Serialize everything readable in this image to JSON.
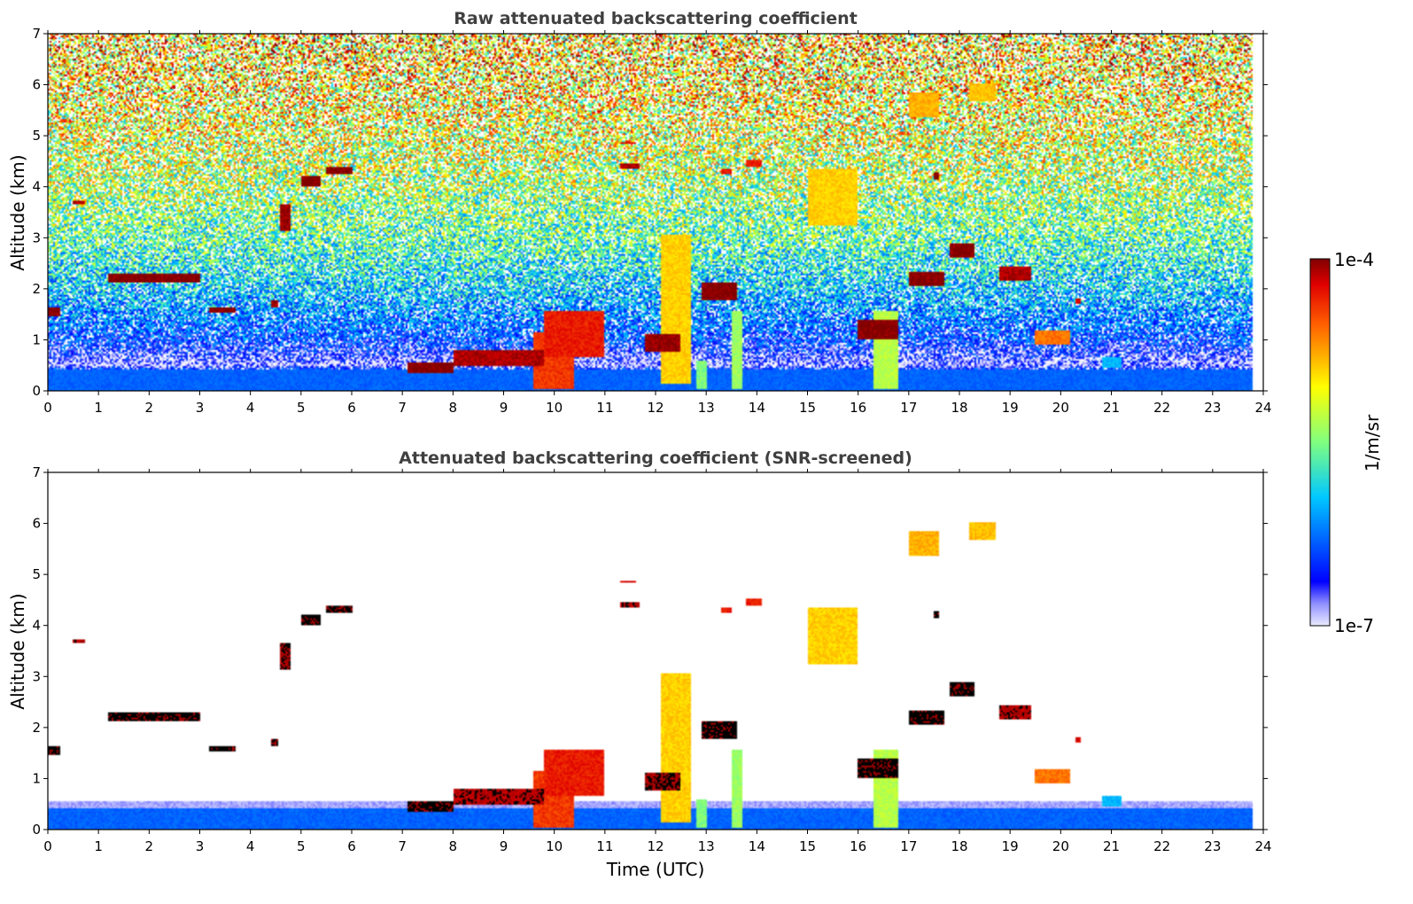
{
  "chart_data": [
    {
      "type": "heatmap",
      "title": "Raw attenuated backscattering coefficient",
      "xlabel": "",
      "ylabel": "Altitude (km)",
      "xlim": [
        0,
        24
      ],
      "ylim": [
        0,
        7
      ],
      "x_ticks": [
        "0",
        "1",
        "2",
        "3",
        "4",
        "5",
        "6",
        "7",
        "8",
        "9",
        "10",
        "11",
        "12",
        "13",
        "14",
        "15",
        "16",
        "17",
        "18",
        "19",
        "20",
        "21",
        "22",
        "23",
        "24"
      ],
      "y_ticks": [
        "0",
        "1",
        "2",
        "3",
        "4",
        "5",
        "6",
        "7"
      ],
      "data_end_time": 23.8,
      "background_log_by_altitude": [
        {
          "altitude_km": 0.0,
          "log10": -6.3
        },
        {
          "altitude_km": 0.4,
          "log10": -6.3
        },
        {
          "altitude_km": 0.5,
          "log10": -6.85
        },
        {
          "altitude_km": 1.0,
          "log10": -6.4
        },
        {
          "altitude_km": 2.0,
          "log10": -5.95
        },
        {
          "altitude_km": 3.0,
          "log10": -5.6
        },
        {
          "altitude_km": 4.0,
          "log10": -5.35
        },
        {
          "altitude_km": 5.0,
          "log10": -5.15
        },
        {
          "altitude_km": 6.0,
          "log10": -5.0
        },
        {
          "altitude_km": 7.0,
          "log10": -4.9
        }
      ]
    },
    {
      "type": "heatmap",
      "title": "Attenuated backscattering coefficient (SNR-screened)",
      "xlabel": "Time (UTC)",
      "ylabel": "Altitude (km)",
      "xlim": [
        0,
        24
      ],
      "ylim": [
        0,
        7
      ],
      "x_ticks": [
        "0",
        "1",
        "2",
        "3",
        "4",
        "5",
        "6",
        "7",
        "8",
        "9",
        "10",
        "11",
        "12",
        "13",
        "14",
        "15",
        "16",
        "17",
        "18",
        "19",
        "20",
        "21",
        "22",
        "23",
        "24"
      ],
      "y_ticks": [
        "0",
        "1",
        "2",
        "3",
        "4",
        "5",
        "6",
        "7"
      ],
      "screened_out_color": "#ffffff",
      "above_range_color": "#000000"
    }
  ],
  "features": [
    {
      "t0": 1.2,
      "t1": 3.0,
      "alt": 2.22,
      "thick": 0.18,
      "log10": -4.0
    },
    {
      "t0": 0.0,
      "t1": 0.25,
      "alt": 1.55,
      "thick": 0.15,
      "log10": -4.0
    },
    {
      "t0": 3.2,
      "t1": 3.7,
      "alt": 1.58,
      "thick": 0.12,
      "log10": -4.0
    },
    {
      "t0": 0.5,
      "t1": 0.75,
      "alt": 3.7,
      "thick": 0.06,
      "log10": -4.1
    },
    {
      "t0": 4.6,
      "t1": 4.8,
      "alt": 3.4,
      "thick": 0.5,
      "log10": -4.05
    },
    {
      "t0": 5.0,
      "t1": 5.4,
      "alt": 4.1,
      "thick": 0.22,
      "log10": -4.0
    },
    {
      "t0": 5.5,
      "t1": 6.0,
      "alt": 4.32,
      "thick": 0.12,
      "log10": -4.0
    },
    {
      "t0": 4.4,
      "t1": 4.55,
      "alt": 1.7,
      "thick": 0.12,
      "log10": -4.05
    },
    {
      "t0": 7.1,
      "t1": 8.0,
      "alt": 0.45,
      "thick": 0.18,
      "log10": -4.0
    },
    {
      "t0": 8.0,
      "t1": 9.8,
      "alt": 0.65,
      "thick": 0.3,
      "log10": -4.1
    },
    {
      "t0": 9.8,
      "t1": 11.0,
      "alt": 1.1,
      "thick": 0.9,
      "log10": -4.3
    },
    {
      "t0": 11.8,
      "t1": 12.5,
      "alt": 0.95,
      "thick": 0.35,
      "log10": -4.05
    },
    {
      "t0": 12.9,
      "t1": 13.6,
      "alt": 1.95,
      "thick": 0.35,
      "log10": -4.0
    },
    {
      "t0": 11.3,
      "t1": 11.7,
      "alt": 4.4,
      "thick": 0.12,
      "log10": -4.1
    },
    {
      "t0": 11.3,
      "t1": 11.6,
      "alt": 4.85,
      "thick": 0.05,
      "log10": -4.2
    },
    {
      "t0": 13.3,
      "t1": 13.5,
      "alt": 4.3,
      "thick": 0.1,
      "log10": -4.3
    },
    {
      "t0": 13.8,
      "t1": 14.1,
      "alt": 4.45,
      "thick": 0.12,
      "log10": -4.3
    },
    {
      "t0": 15.0,
      "t1": 16.0,
      "alt": 3.8,
      "thick": 1.1,
      "log10": -4.9
    },
    {
      "t0": 17.0,
      "t1": 17.6,
      "alt": 5.6,
      "thick": 0.5,
      "log10": -4.8
    },
    {
      "t0": 18.2,
      "t1": 18.7,
      "alt": 5.85,
      "thick": 0.35,
      "log10": -4.85
    },
    {
      "t0": 16.0,
      "t1": 16.8,
      "alt": 1.2,
      "thick": 0.4,
      "log10": -4.0
    },
    {
      "t0": 17.0,
      "t1": 17.7,
      "alt": 2.2,
      "thick": 0.3,
      "log10": -4.0
    },
    {
      "t0": 17.5,
      "t1": 17.6,
      "alt": 4.22,
      "thick": 0.12,
      "log10": -4.0
    },
    {
      "t0": 17.8,
      "t1": 18.3,
      "alt": 2.75,
      "thick": 0.25,
      "log10": -4.0
    },
    {
      "t0": 18.8,
      "t1": 19.4,
      "alt": 2.3,
      "thick": 0.3,
      "log10": -4.1
    },
    {
      "t0": 19.5,
      "t1": 20.2,
      "alt": 1.05,
      "thick": 0.3,
      "log10": -4.6
    },
    {
      "t0": 20.3,
      "t1": 20.4,
      "alt": 1.75,
      "thick": 0.1,
      "log10": -4.2
    },
    {
      "t0": 12.1,
      "t1": 12.7,
      "alt": 1.6,
      "thick": 2.9,
      "log10": -4.9
    },
    {
      "t0": 9.6,
      "t1": 10.4,
      "alt": 0.6,
      "thick": 1.1,
      "log10": -4.4
    },
    {
      "t0": 16.3,
      "t1": 16.8,
      "alt": 0.8,
      "thick": 1.5,
      "log10": -5.3
    },
    {
      "t0": 12.8,
      "t1": 13.0,
      "alt": 0.3,
      "thick": 0.55,
      "log10": -5.5
    },
    {
      "t0": 13.5,
      "t1": 13.7,
      "alt": 0.8,
      "thick": 1.5,
      "log10": -5.4
    },
    {
      "t0": 20.8,
      "t1": 21.2,
      "alt": 0.55,
      "thick": 0.2,
      "log10": -6.0
    }
  ],
  "colorbar": {
    "label": "1/m/sr",
    "max_label": "1e-4",
    "min_label": "1e-7",
    "colormap": "jet",
    "scale": "log"
  },
  "colors": {
    "jet": [
      "#eaeaff",
      "#00008f",
      "#0000ff",
      "#00ffff",
      "#80ff80",
      "#ffff00",
      "#ff8000",
      "#ff0000",
      "#800000"
    ],
    "axis": "#000000",
    "title": "#404040"
  }
}
